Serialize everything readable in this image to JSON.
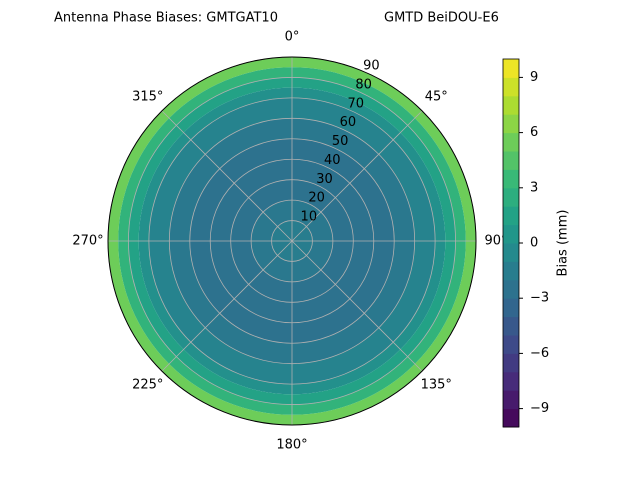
{
  "chart_data": {
    "type": "polar_contour",
    "title": "Antenna Phase Biases: GMTGAT10",
    "subtitle": "GMTD BeiDOU-E6",
    "rlim": [
      0,
      90
    ],
    "rticks": [
      10,
      20,
      30,
      40,
      50,
      60,
      70,
      80,
      90
    ],
    "thetaticks": [
      {
        "value": 0,
        "label": "0°"
      },
      {
        "value": 45,
        "label": "45°"
      },
      {
        "value": 90,
        "label": "90°"
      },
      {
        "value": 135,
        "label": "135°"
      },
      {
        "value": 180,
        "label": "180°"
      },
      {
        "value": 225,
        "label": "225°"
      },
      {
        "value": 270,
        "label": "270°"
      },
      {
        "value": 315,
        "label": "315°"
      }
    ],
    "theta_direction": "clockwise",
    "theta_zero": "north",
    "grid": true,
    "colormap": "viridis",
    "zenith_bins": [
      0,
      10,
      20,
      30,
      40,
      50,
      60,
      70,
      75,
      80,
      85,
      90
    ],
    "bias": [
      -1.5,
      -2,
      -2.5,
      -2.5,
      -2.5,
      -2,
      -1,
      0,
      1.5,
      3,
      5.5
    ],
    "clim": [
      -10,
      10
    ],
    "cticks": [
      {
        "value": -9,
        "label": "−9"
      },
      {
        "value": -6,
        "label": "−6"
      },
      {
        "value": -3,
        "label": "−3"
      },
      0,
      3,
      6,
      9
    ],
    "colorbar_label": "Bias (mm)"
  }
}
